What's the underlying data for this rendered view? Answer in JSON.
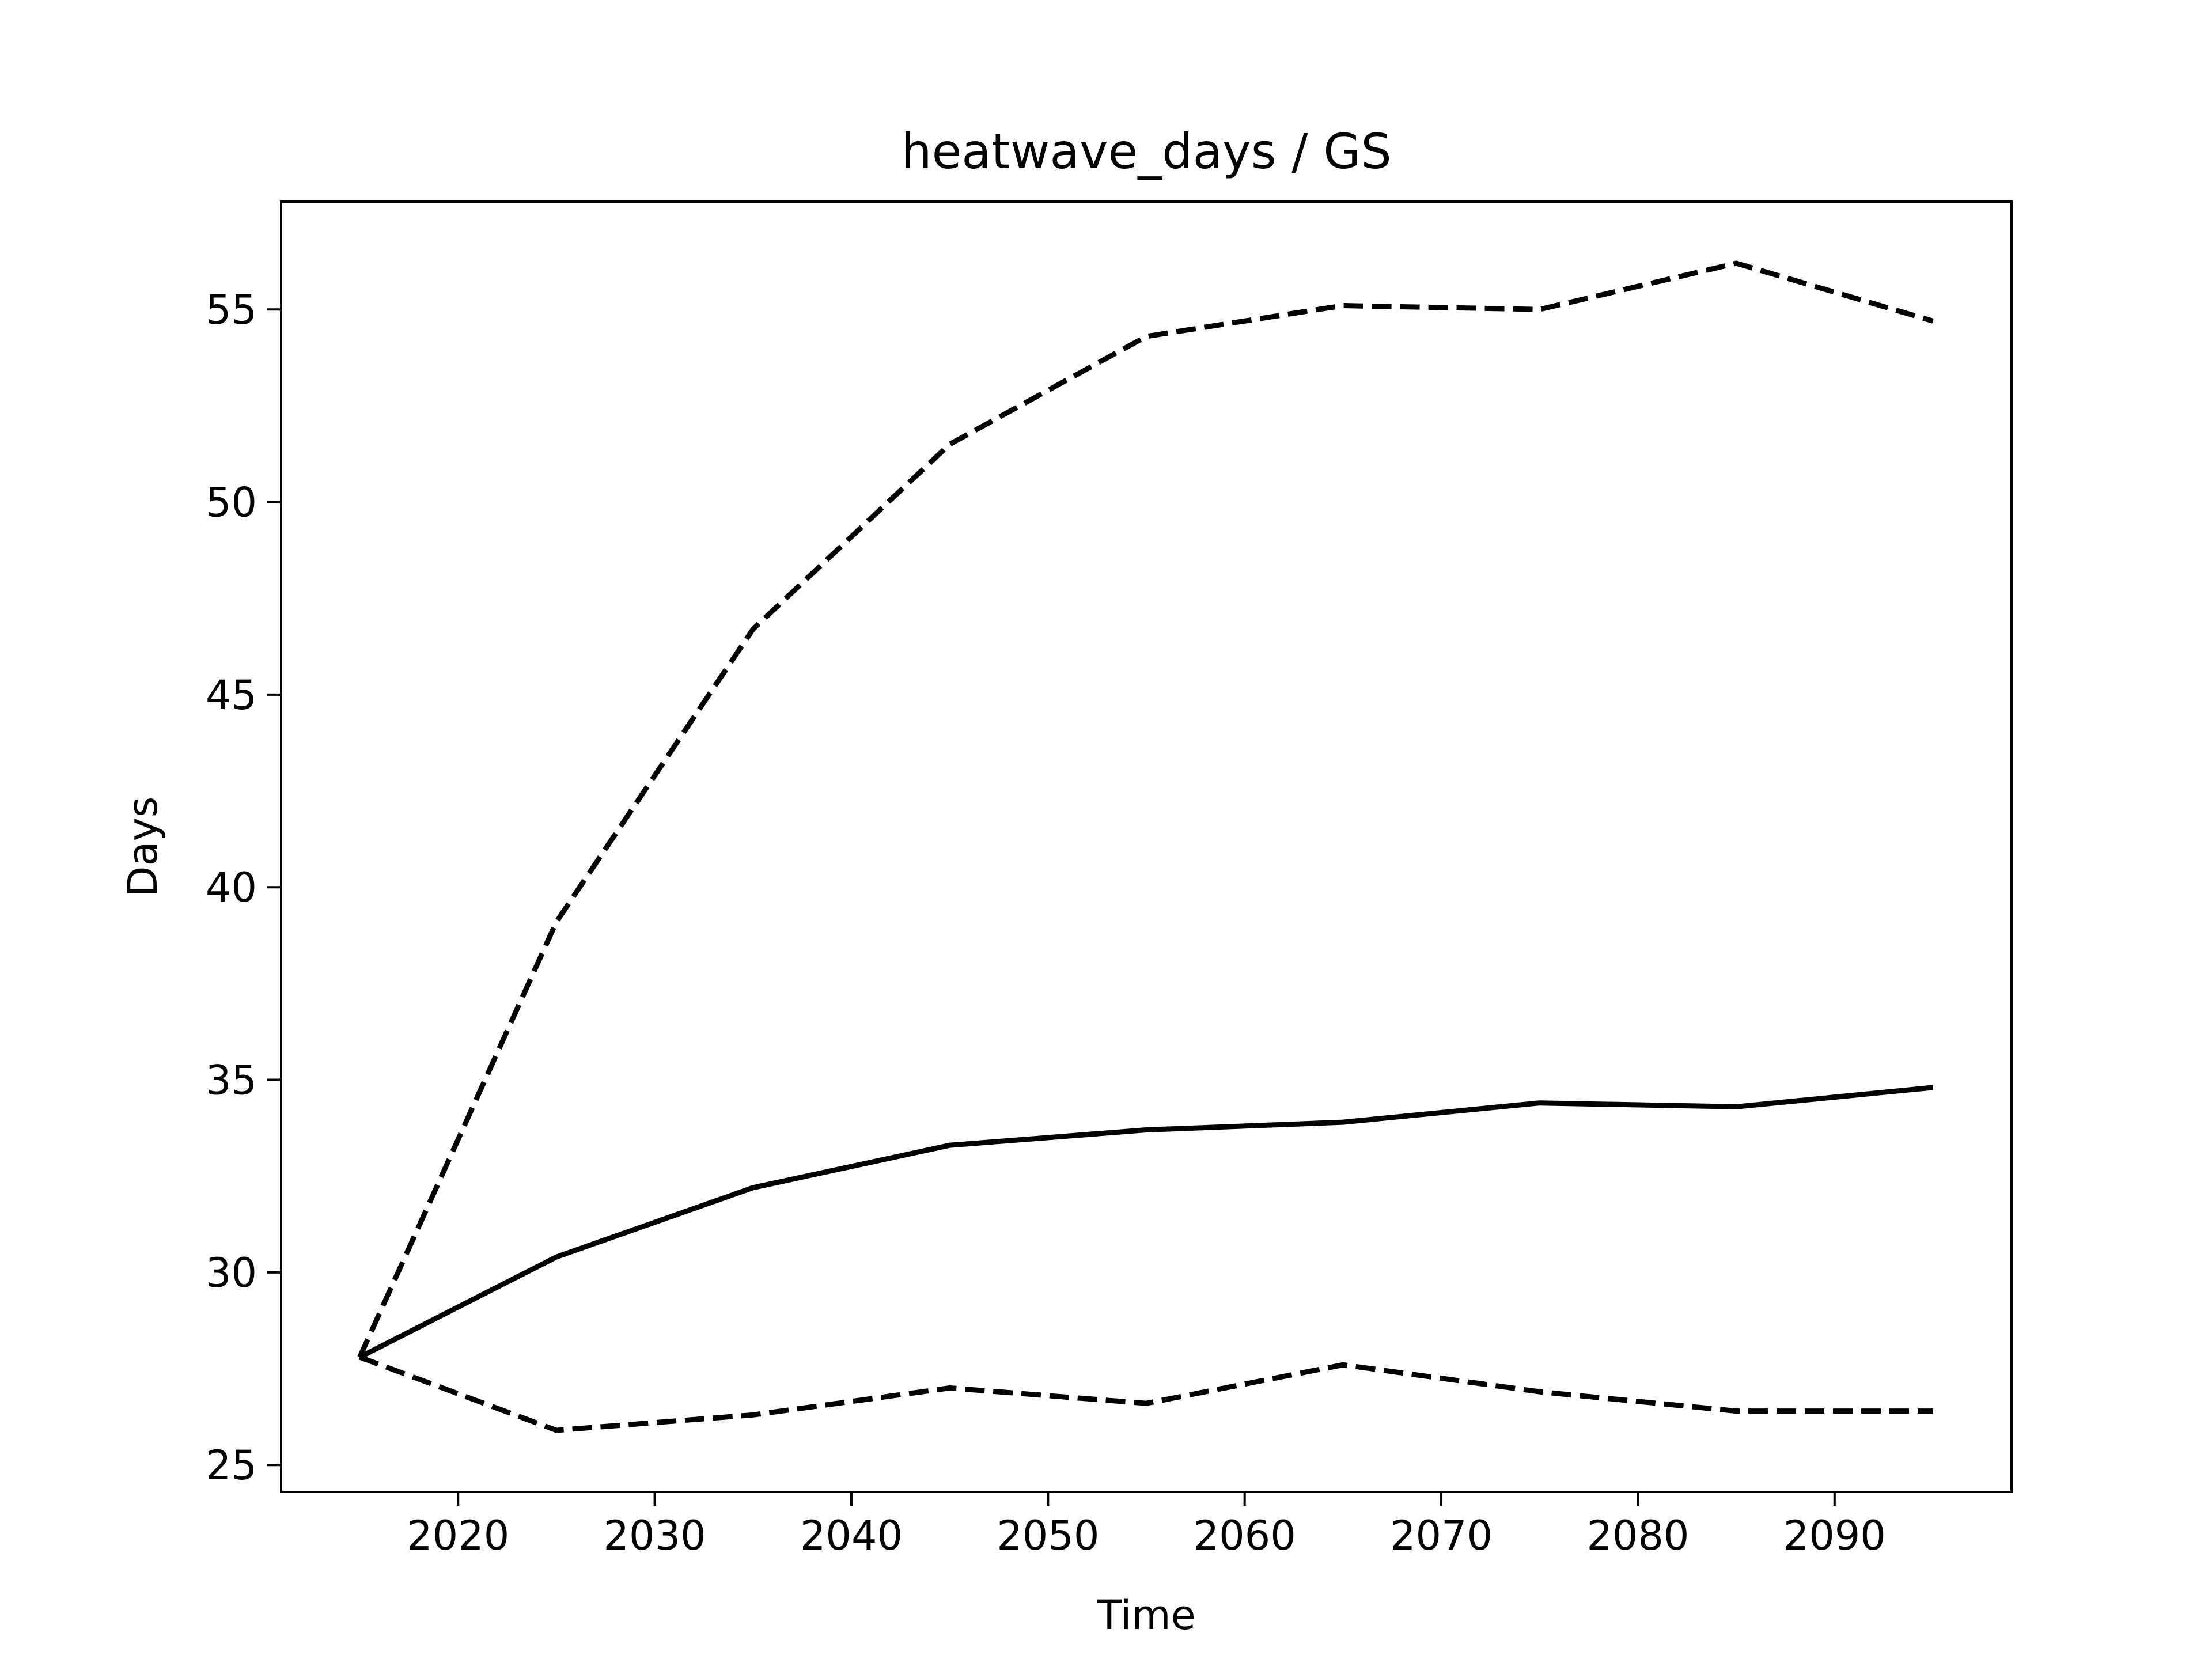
{
  "chart_data": {
    "type": "line",
    "title": "heatwave_days / GS",
    "xlabel": "Time",
    "ylabel": "Days",
    "xlim": [
      2011,
      2099
    ],
    "ylim": [
      24.3,
      57.8
    ],
    "xticks": [
      2020,
      2030,
      2040,
      2050,
      2060,
      2070,
      2080,
      2090
    ],
    "yticks": [
      25,
      30,
      35,
      40,
      45,
      50,
      55
    ],
    "grid": false,
    "x": [
      2015,
      2025,
      2035,
      2045,
      2055,
      2065,
      2075,
      2085,
      2095
    ],
    "series": [
      {
        "style": "solid",
        "color": "#000000",
        "values": [
          27.8,
          30.4,
          32.2,
          33.3,
          33.7,
          33.9,
          34.4,
          34.3,
          34.8
        ]
      },
      {
        "style": "dashed",
        "color": "#000000",
        "values": [
          27.8,
          39.1,
          46.7,
          51.5,
          54.3,
          55.1,
          55.0,
          56.2,
          54.7
        ]
      },
      {
        "style": "dashed",
        "color": "#000000",
        "values": [
          27.8,
          25.9,
          26.3,
          27.0,
          26.6,
          27.6,
          26.9,
          26.4,
          26.4
        ]
      }
    ]
  }
}
